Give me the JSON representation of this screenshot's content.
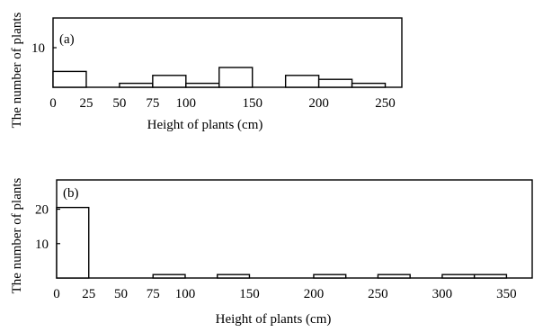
{
  "chart_data": [
    {
      "type": "bar",
      "panel_label": "(a)",
      "title": "",
      "xlabel": "Height of plants (cm)",
      "ylabel": "The number of plants",
      "xlim": [
        0,
        262.5
      ],
      "ylim": [
        0,
        17.5
      ],
      "x_ticks": [
        0,
        25,
        50,
        75,
        100,
        150,
        200,
        250
      ],
      "y_ticks": [
        10
      ],
      "grid": false,
      "bars": [
        {
          "x_start": 0,
          "x_end": 25,
          "value": 4
        },
        {
          "x_start": 50,
          "x_end": 75,
          "value": 1
        },
        {
          "x_start": 75,
          "x_end": 100,
          "value": 3
        },
        {
          "x_start": 100,
          "x_end": 125,
          "value": 1
        },
        {
          "x_start": 125,
          "x_end": 150,
          "value": 5
        },
        {
          "x_start": 175,
          "x_end": 200,
          "value": 3
        },
        {
          "x_start": 200,
          "x_end": 225,
          "value": 2
        },
        {
          "x_start": 225,
          "x_end": 250,
          "value": 1
        }
      ]
    },
    {
      "type": "bar",
      "panel_label": "(b)",
      "title": "",
      "xlabel": "Height of plants (cm)",
      "ylabel": "The number of plants",
      "xlim": [
        0,
        370
      ],
      "ylim": [
        0,
        28.5
      ],
      "x_ticks": [
        0,
        25,
        50,
        75,
        100,
        150,
        200,
        250,
        300,
        350
      ],
      "y_ticks": [
        10,
        20
      ],
      "grid": false,
      "bars": [
        {
          "x_start": 0,
          "x_end": 25,
          "value": 20.5
        },
        {
          "x_start": 75,
          "x_end": 100,
          "value": 1
        },
        {
          "x_start": 125,
          "x_end": 150,
          "value": 1
        },
        {
          "x_start": 200,
          "x_end": 225,
          "value": 1
        },
        {
          "x_start": 250,
          "x_end": 275,
          "value": 1
        },
        {
          "x_start": 300,
          "x_end": 325,
          "value": 1
        },
        {
          "x_start": 325,
          "x_end": 350,
          "value": 1
        }
      ]
    }
  ]
}
